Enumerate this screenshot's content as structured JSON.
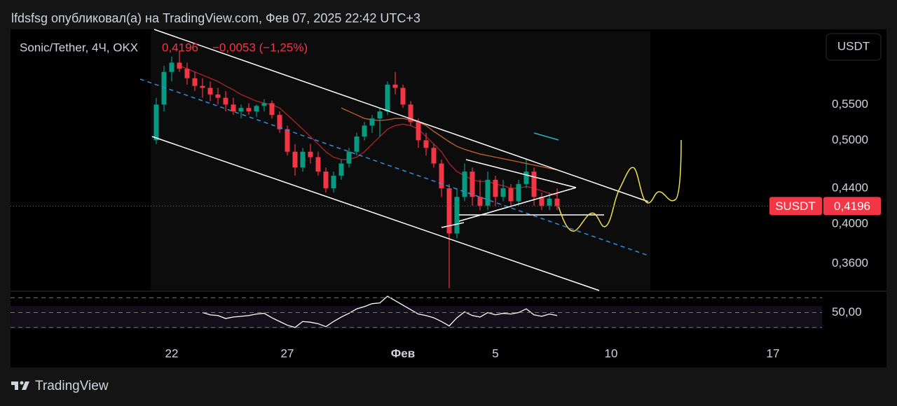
{
  "header": {
    "attribution": "lfdsfsg опубликовал(а) на TradingView.com, Фев 07, 2025 22:42 UTC+3",
    "brand": "TradingView"
  },
  "chart_data": {
    "type": "candlestick",
    "symbol": "Sonic/Tether, 4Ч, OKX",
    "last_value": "0,4196",
    "change": "−0,0053 (−1,25%)",
    "currency": "USDT",
    "ticker": "SUSDT",
    "last_price": {
      "value": 0.4196,
      "label": "0,4196"
    },
    "log_scale": true,
    "up_color": "#089981",
    "down_color": "#f23645",
    "ylim": [
      0.335,
      0.672
    ],
    "yticks": [
      {
        "value": 0.55,
        "label": "0,5500"
      },
      {
        "value": 0.5,
        "label": "0,5000"
      },
      {
        "value": 0.44,
        "label": "0,4400"
      },
      {
        "value": 0.4,
        "label": "0,4000"
      },
      {
        "value": 0.36,
        "label": "0,3600"
      }
    ],
    "categories": [
      null,
      null,
      "22",
      null,
      null,
      null,
      null,
      null,
      null,
      null,
      null,
      null,
      null,
      null,
      null,
      null,
      null,
      "27",
      null,
      null,
      null,
      null,
      null,
      null,
      null,
      null,
      null,
      null,
      null,
      null,
      null,
      null,
      "Фев",
      null,
      null,
      null,
      null,
      null,
      null,
      null,
      null,
      null,
      null,
      null,
      "5",
      null,
      null,
      null,
      null,
      null,
      null,
      null,
      null,
      null,
      null,
      null,
      null,
      null,
      null,
      "10",
      null,
      null,
      null,
      null,
      null,
      null,
      null,
      null,
      null,
      null,
      null,
      null,
      null,
      null,
      null,
      null,
      null,
      null,
      null,
      null,
      "17",
      null,
      null,
      null,
      null,
      null
    ],
    "open": [
      0.5,
      0.55,
      0.6,
      0.615,
      0.605,
      0.59,
      0.578,
      0.575,
      0.565,
      0.56,
      0.55,
      0.54,
      0.545,
      0.54,
      0.548,
      0.552,
      0.535,
      0.515,
      0.485,
      0.465,
      0.485,
      0.478,
      0.46,
      0.44,
      0.455,
      0.47,
      0.485,
      0.505,
      0.52,
      0.53,
      0.54,
      0.58,
      0.575,
      0.55,
      0.525,
      0.5,
      0.49,
      0.47,
      0.44,
      0.39,
      0.43,
      0.46,
      0.43,
      0.42,
      0.45,
      0.43,
      0.44,
      0.425,
      0.445,
      0.46,
      0.43,
      0.42,
      0.428,
      null,
      null,
      null,
      null,
      null,
      null,
      null,
      null,
      null,
      null,
      null,
      null,
      null,
      null,
      null,
      null,
      null,
      null,
      null,
      null,
      null,
      null,
      null,
      null,
      null,
      null,
      null,
      null,
      null,
      null,
      null,
      null,
      null
    ],
    "high": [
      0.56,
      0.61,
      0.625,
      0.635,
      0.615,
      0.6,
      0.59,
      0.585,
      0.575,
      0.57,
      0.56,
      0.55,
      0.552,
      0.55,
      0.558,
      0.556,
      0.54,
      0.52,
      0.495,
      0.49,
      0.495,
      0.485,
      0.465,
      0.46,
      0.475,
      0.49,
      0.51,
      0.525,
      0.535,
      0.545,
      0.585,
      0.6,
      0.58,
      0.555,
      0.53,
      0.51,
      0.495,
      0.475,
      0.445,
      0.44,
      0.47,
      0.465,
      0.45,
      0.46,
      0.455,
      0.45,
      0.445,
      0.45,
      0.475,
      0.465,
      0.435,
      0.435,
      0.44,
      null,
      null,
      null,
      null,
      null,
      null,
      null,
      null,
      null,
      null,
      null,
      null,
      null,
      null,
      null,
      null,
      null,
      null,
      null,
      null,
      null,
      null,
      null,
      null,
      null,
      null,
      null,
      null,
      null,
      null,
      null,
      null,
      null
    ],
    "low": [
      0.495,
      0.54,
      0.585,
      0.6,
      0.58,
      0.57,
      0.56,
      0.555,
      0.55,
      0.54,
      0.535,
      0.53,
      0.535,
      0.532,
      0.54,
      0.53,
      0.51,
      0.48,
      0.455,
      0.46,
      0.47,
      0.455,
      0.435,
      0.435,
      0.45,
      0.465,
      0.48,
      0.5,
      0.51,
      0.505,
      0.535,
      0.565,
      0.545,
      0.52,
      0.49,
      0.48,
      0.465,
      0.43,
      0.337,
      0.385,
      0.425,
      0.42,
      0.415,
      0.415,
      0.42,
      0.425,
      0.42,
      0.42,
      0.44,
      0.42,
      0.415,
      0.415,
      0.415,
      null,
      null,
      null,
      null,
      null,
      null,
      null,
      null,
      null,
      null,
      null,
      null,
      null,
      null,
      null,
      null,
      null,
      null,
      null,
      null,
      null,
      null,
      null,
      null,
      null,
      null,
      null,
      null,
      null,
      null,
      null,
      null,
      null
    ],
    "close": [
      0.55,
      0.6,
      0.615,
      0.605,
      0.59,
      0.578,
      0.575,
      0.565,
      0.56,
      0.55,
      0.54,
      0.545,
      0.54,
      0.548,
      0.552,
      0.535,
      0.515,
      0.485,
      0.465,
      0.485,
      0.478,
      0.46,
      0.44,
      0.455,
      0.47,
      0.485,
      0.505,
      0.52,
      0.53,
      0.54,
      0.58,
      0.575,
      0.55,
      0.525,
      0.5,
      0.49,
      0.47,
      0.44,
      0.39,
      0.43,
      0.46,
      0.43,
      0.42,
      0.45,
      0.43,
      0.44,
      0.425,
      0.445,
      0.46,
      0.43,
      0.42,
      0.428,
      0.4196,
      null,
      null,
      null,
      null,
      null,
      null,
      null,
      null,
      null,
      null,
      null,
      null,
      null,
      null,
      null,
      null,
      null,
      null,
      null,
      null,
      null,
      null,
      null,
      null,
      null,
      null,
      null,
      null,
      null,
      null,
      null,
      null,
      null
    ],
    "overlays": [
      {
        "color": "#b2222a",
        "values": [
          null,
          null,
          null,
          0.61,
          0.605,
          0.6,
          0.595,
          0.59,
          0.585,
          0.578,
          0.572,
          0.565,
          0.56,
          0.555,
          0.552,
          0.55,
          0.545,
          0.535,
          0.525,
          0.515,
          0.505,
          0.495,
          0.485,
          0.478,
          0.475,
          0.475,
          0.478,
          0.485,
          0.495,
          0.505,
          0.515,
          0.52,
          0.522,
          0.52,
          0.515,
          0.505,
          0.495,
          0.485,
          0.47,
          0.46,
          0.455,
          0.45,
          0.448,
          0.448,
          0.445,
          0.443,
          0.44,
          0.44,
          0.442,
          0.44,
          0.437,
          0.434,
          0.432,
          null,
          null,
          null,
          null,
          null,
          null,
          null,
          null,
          null,
          null,
          null,
          null,
          null,
          null,
          null,
          null,
          null,
          null,
          null,
          null,
          null,
          null,
          null,
          null,
          null,
          null,
          null,
          null,
          null,
          null,
          null,
          null,
          null
        ]
      },
      {
        "color": "#c8642a",
        "values": [
          null,
          null,
          null,
          null,
          null,
          null,
          null,
          null,
          null,
          null,
          null,
          null,
          null,
          null,
          null,
          null,
          null,
          null,
          null,
          null,
          null,
          null,
          null,
          null,
          0.545,
          0.54,
          0.535,
          0.53,
          0.528,
          0.527,
          0.528,
          0.53,
          0.53,
          0.528,
          0.525,
          0.52,
          0.512,
          0.505,
          0.498,
          0.492,
          0.488,
          0.485,
          0.482,
          0.48,
          0.478,
          0.476,
          0.474,
          0.472,
          0.47,
          0.468,
          0.466,
          0.464,
          0.462,
          null,
          null,
          null,
          null,
          null,
          null,
          null,
          null,
          null,
          null,
          null,
          null,
          null,
          null,
          null,
          null,
          null,
          null,
          null,
          null,
          null,
          null,
          null,
          null,
          null,
          null,
          null,
          null,
          null,
          null,
          null,
          null,
          null
        ]
      }
    ],
    "rsi": {
      "color": "#ffffff",
      "ylim": [
        26,
        75
      ],
      "yticks": [
        {
          "value": 50,
          "label": "50,00"
        }
      ],
      "bands": [
        70,
        50,
        30
      ],
      "values": [
        null,
        null,
        null,
        null,
        null,
        null,
        50,
        47,
        46,
        42,
        44,
        45,
        46,
        48,
        49,
        43,
        38,
        33,
        30,
        38,
        37,
        35,
        31,
        38,
        44,
        49,
        55,
        58,
        62,
        63,
        72,
        66,
        60,
        54,
        48,
        46,
        43,
        38,
        32,
        43,
        51,
        46,
        44,
        50,
        47,
        49,
        48,
        50,
        55,
        47,
        45,
        48,
        46,
        null,
        null,
        null,
        null,
        null,
        null,
        null,
        null,
        null,
        null,
        null,
        null,
        null,
        null,
        null,
        null,
        null,
        null,
        null,
        null,
        null,
        null,
        null,
        null,
        null,
        null,
        null,
        null,
        null,
        null,
        null,
        null,
        null
      ]
    }
  }
}
